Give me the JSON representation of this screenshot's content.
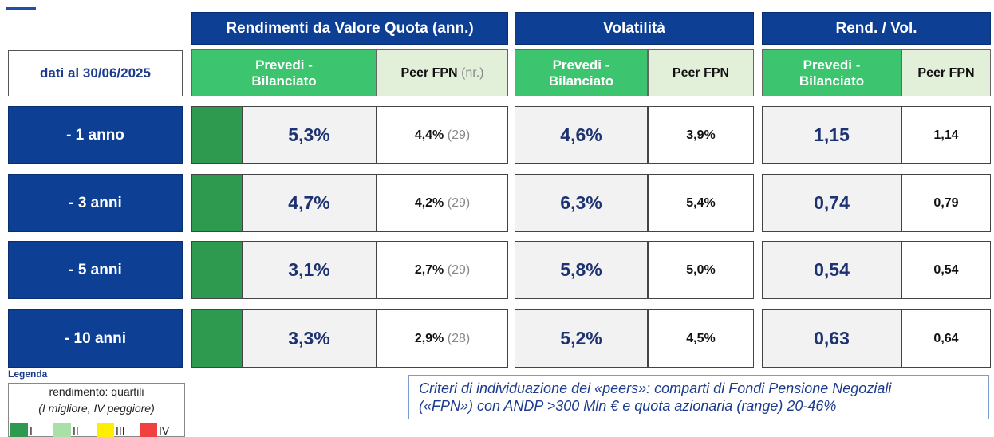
{
  "header": {
    "groups": [
      "Rendimenti da Valore Quota (ann.)",
      "Volatilità",
      "Rend. / Vol."
    ]
  },
  "date_label": "dati al 30/06/2025",
  "subheaders": [
    {
      "text": "Prevedi -\nBilanciato"
    },
    {
      "text": "Peer FPN",
      "note": "(nr.)"
    },
    {
      "text": "Prevedi -\nBilanciato"
    },
    {
      "text": "Peer FPN"
    },
    {
      "text": "Prevedi -\nBilanciato"
    },
    {
      "text": "Peer FPN"
    }
  ],
  "rows": [
    {
      "label": "- 1 anno",
      "quartile": "I",
      "return": "5,3%",
      "peer_return": "4,4%",
      "peer_count": "(29)",
      "volatility": "4,6%",
      "peer_volatility": "3,9%",
      "ratio": "1,15",
      "peer_ratio": "1,14"
    },
    {
      "label": "- 3 anni",
      "quartile": "I",
      "return": "4,7%",
      "peer_return": "4,2%",
      "peer_count": "(29)",
      "volatility": "6,3%",
      "peer_volatility": "5,4%",
      "ratio": "0,74",
      "peer_ratio": "0,79"
    },
    {
      "label": "- 5 anni",
      "quartile": "I",
      "return": "3,1%",
      "peer_return": "2,7%",
      "peer_count": "(29)",
      "volatility": "5,8%",
      "peer_volatility": "5,0%",
      "ratio": "0,54",
      "peer_ratio": "0,54"
    },
    {
      "label": "- 10 anni",
      "quartile": "I",
      "return": "3,3%",
      "peer_return": "2,9%",
      "peer_count": "(28)",
      "volatility": "5,2%",
      "peer_volatility": "4,5%",
      "ratio": "0,63",
      "peer_ratio": "0,64"
    }
  ],
  "legend": {
    "title": "Legenda",
    "line1": "rendimento: quartili",
    "line2": "(I migliore, IV peggiore)",
    "items": [
      {
        "label": "I",
        "color": "#2e9a4f"
      },
      {
        "label": "II",
        "color": "#a9dfa9"
      },
      {
        "label": "III",
        "color": "#ffee00"
      },
      {
        "label": "IV",
        "color": "#f04040"
      }
    ]
  },
  "note": "Criteri di individuazione dei «peers»: comparti di Fondi Pensione Negoziali\n(«FPN») con ANDP >300 Mln € e quota azionaria (range) 20-46%"
}
